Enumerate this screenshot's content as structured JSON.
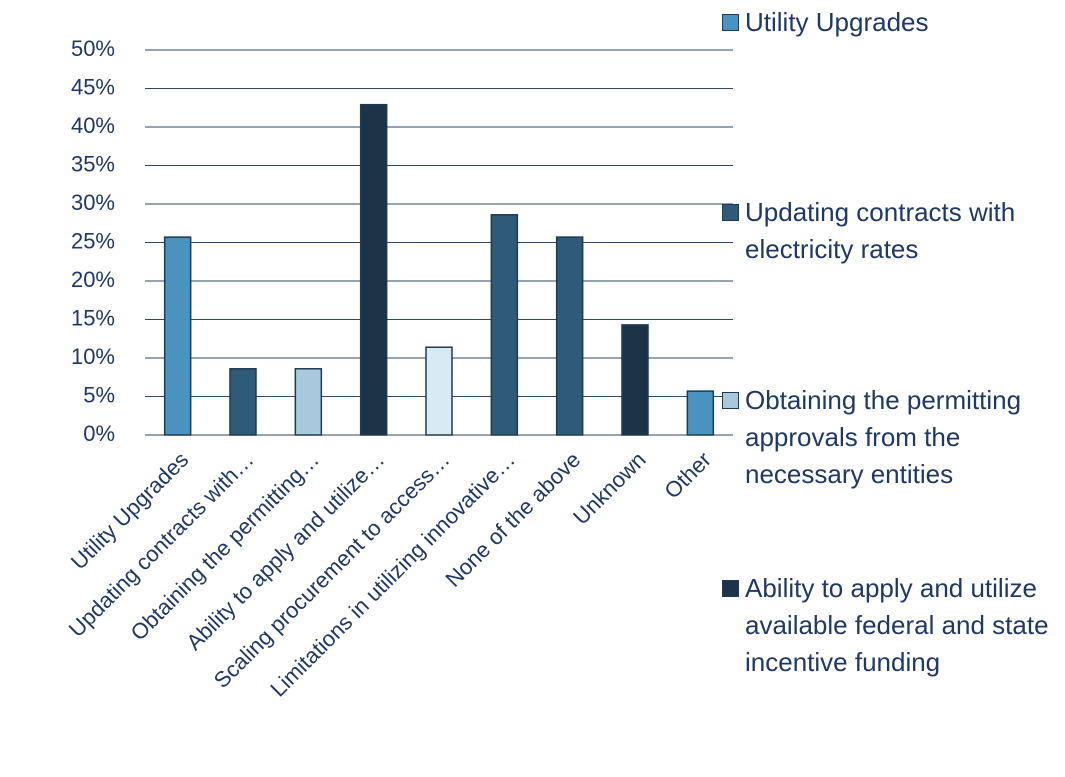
{
  "chart_data": {
    "type": "bar",
    "categories": [
      "Utility Upgrades",
      "Updating contracts with…",
      "Obtaining the permitting…",
      "Ability to apply and utilize…",
      "Scaling procurement to access…",
      "Limitations in utilizing innovative…",
      "None of the above",
      "Unknown",
      "Other"
    ],
    "values": [
      25.7,
      8.6,
      8.6,
      42.9,
      11.4,
      28.6,
      25.7,
      14.3,
      5.7
    ],
    "colors": [
      "#4a93c0",
      "#2f5a78",
      "#a9c8dd",
      "#1c3348",
      "#d8ebf4",
      "#2f5a78",
      "#2f5a78",
      "#1c3348",
      "#4a93c0"
    ],
    "ylim": [
      0,
      50
    ],
    "yticks": [
      {
        "value": 0,
        "label": "0%"
      },
      {
        "value": 5,
        "label": "5%"
      },
      {
        "value": 10,
        "label": "10%"
      },
      {
        "value": 15,
        "label": "15%"
      },
      {
        "value": 20,
        "label": "20%"
      },
      {
        "value": 25,
        "label": "25%"
      },
      {
        "value": 30,
        "label": "30%"
      },
      {
        "value": 35,
        "label": "35%"
      },
      {
        "value": 40,
        "label": "40%"
      },
      {
        "value": 45,
        "label": "45%"
      },
      {
        "value": 50,
        "label": "50%"
      }
    ],
    "grid": true,
    "legend_position": "right",
    "legend": [
      {
        "name": "Utility Upgrades",
        "color": "#4a93c0"
      },
      {
        "name": "Updating contracts with electricity rates",
        "color": "#2f5a78"
      },
      {
        "name": "Obtaining the permitting approvals from the necessary entities",
        "color": "#a9c8dd"
      },
      {
        "name": "Ability to apply and utilize available federal and state incentive funding",
        "color": "#1c3348"
      }
    ]
  }
}
